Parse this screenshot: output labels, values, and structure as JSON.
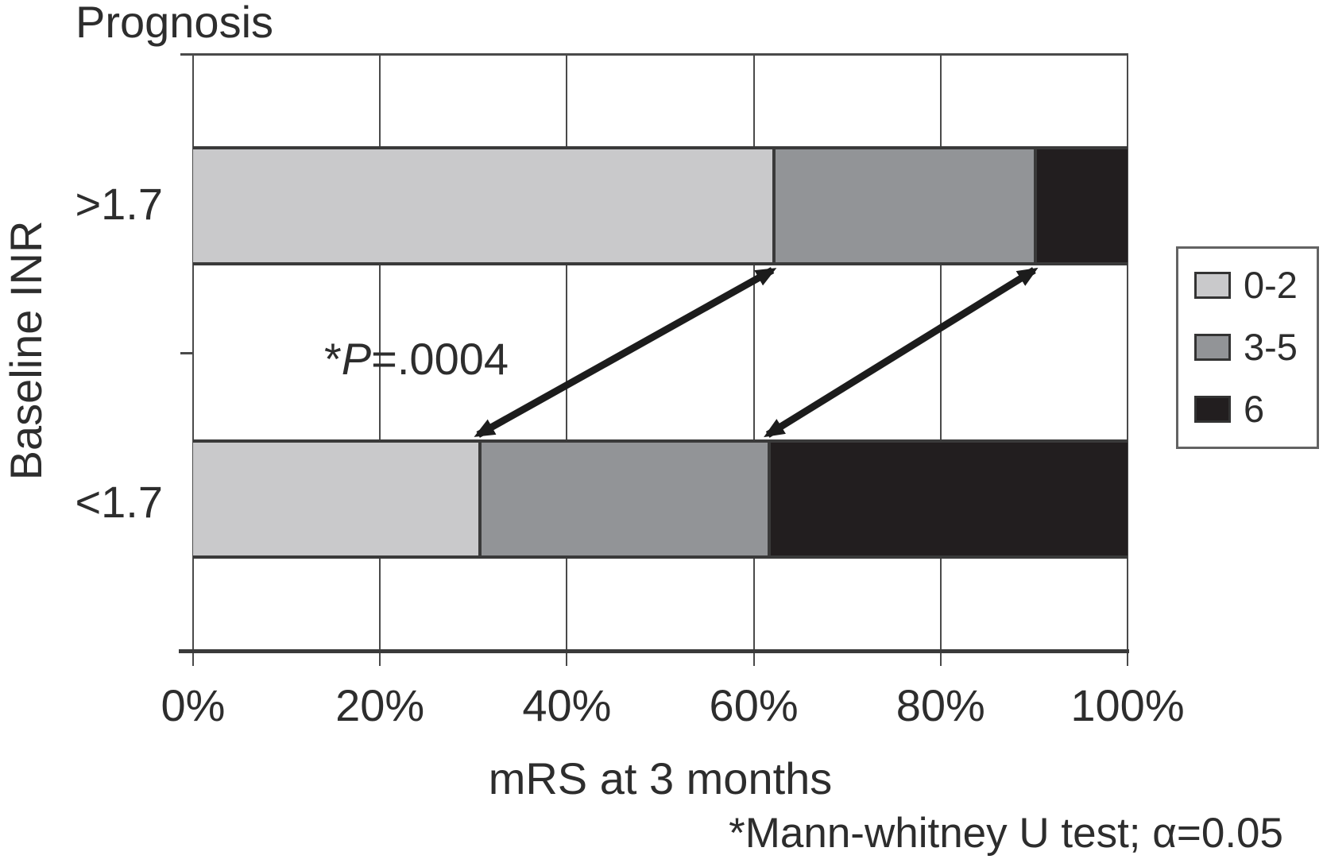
{
  "figure": {
    "footnote": "*Mann-whitney U test; α=0.05"
  },
  "chart_data": {
    "type": "bar",
    "subtype": "horizontal-stacked-100percent",
    "title": "Prognosis",
    "xlabel": "mRS at 3 months",
    "ylabel": "Baseline INR",
    "categories": [
      ">1.7",
      "<1.7"
    ],
    "series": [
      {
        "name": "0-2",
        "color": "#c9c9cb",
        "values": [
          62,
          30.5
        ]
      },
      {
        "name": "3-5",
        "color": "#929497",
        "values": [
          28,
          31
        ]
      },
      {
        "name": "6",
        "color": "#221e1f",
        "values": [
          10,
          38.5
        ]
      }
    ],
    "x_ticks": [
      "0%",
      "20%",
      "40%",
      "60%",
      "80%",
      "100%"
    ],
    "xlim": [
      0,
      100
    ],
    "grid": "vertical",
    "legend_position": "right",
    "legend_labels": [
      "0-2",
      "3-5",
      "6"
    ],
    "annotation": {
      "star": "*",
      "p_symbol": "P",
      "rest": "=.0004"
    },
    "connector_arrows": [
      {
        "from_category": "<1.7",
        "to_category": ">1.7",
        "at_boundary_after_series": "0-2"
      },
      {
        "from_category": "<1.7",
        "to_category": ">1.7",
        "at_boundary_after_series": "3-5"
      }
    ]
  }
}
